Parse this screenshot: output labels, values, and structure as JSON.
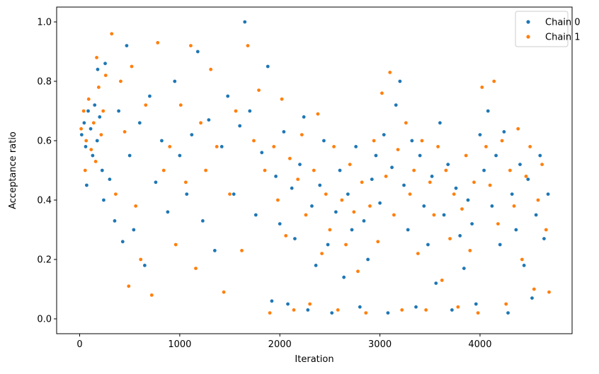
{
  "chart_data": {
    "type": "scatter",
    "title": "",
    "xlabel": "Iteration",
    "ylabel": "Acceptance ratio",
    "xlim": [
      -230,
      4920
    ],
    "ylim": [
      -0.05,
      1.05
    ],
    "xticks": [
      0,
      1000,
      2000,
      3000,
      4000
    ],
    "yticks": [
      0.0,
      0.2,
      0.4,
      0.6,
      0.8,
      1.0
    ],
    "xtick_labels": [
      "0",
      "1000",
      "2000",
      "3000",
      "4000"
    ],
    "ytick_labels": [
      "0.0",
      "0.2",
      "0.4",
      "0.6",
      "0.8",
      "1.0"
    ],
    "grid": false,
    "legend": {
      "position": "top-right",
      "entries": [
        {
          "label": "Chain 0",
          "color": "#1f77b4"
        },
        {
          "label": "Chain 1",
          "color": "#ff7f0e"
        }
      ]
    },
    "iterations": 4700,
    "series": [
      {
        "name": "Chain 0",
        "color": "#1f77b4",
        "points": [
          [
            20,
            0.62
          ],
          [
            45,
            0.66
          ],
          [
            60,
            0.58
          ],
          [
            85,
            0.7
          ],
          [
            110,
            0.64
          ],
          [
            130,
            0.55
          ],
          [
            150,
            0.72
          ],
          [
            175,
            0.6
          ],
          [
            200,
            0.68
          ],
          [
            225,
            0.5
          ],
          [
            70,
            0.45
          ],
          [
            180,
            0.84
          ],
          [
            240,
            0.4
          ],
          [
            255,
            0.86
          ],
          [
            300,
            0.47
          ],
          [
            350,
            0.33
          ],
          [
            390,
            0.7
          ],
          [
            430,
            0.26
          ],
          [
            470,
            0.92
          ],
          [
            500,
            0.55
          ],
          [
            540,
            0.3
          ],
          [
            600,
            0.66
          ],
          [
            650,
            0.18
          ],
          [
            700,
            0.75
          ],
          [
            760,
            0.46
          ],
          [
            820,
            0.6
          ],
          [
            880,
            0.36
          ],
          [
            950,
            0.8
          ],
          [
            1000,
            0.55
          ],
          [
            1070,
            0.42
          ],
          [
            1120,
            0.62
          ],
          [
            1180,
            0.9
          ],
          [
            1230,
            0.33
          ],
          [
            1290,
            0.67
          ],
          [
            1350,
            0.23
          ],
          [
            1420,
            0.58
          ],
          [
            1480,
            0.75
          ],
          [
            1540,
            0.42
          ],
          [
            1600,
            0.65
          ],
          [
            1650,
            1.0
          ],
          [
            1700,
            0.7
          ],
          [
            1760,
            0.35
          ],
          [
            1820,
            0.56
          ],
          [
            1880,
            0.85
          ],
          [
            1920,
            0.06
          ],
          [
            1960,
            0.48
          ],
          [
            2000,
            0.32
          ],
          [
            2040,
            0.63
          ],
          [
            2080,
            0.05
          ],
          [
            2120,
            0.44
          ],
          [
            2150,
            0.27
          ],
          [
            2200,
            0.52
          ],
          [
            2240,
            0.68
          ],
          [
            2280,
            0.03
          ],
          [
            2320,
            0.38
          ],
          [
            2360,
            0.18
          ],
          [
            2400,
            0.45
          ],
          [
            2440,
            0.6
          ],
          [
            2480,
            0.25
          ],
          [
            2520,
            0.02
          ],
          [
            2560,
            0.36
          ],
          [
            2600,
            0.5
          ],
          [
            2640,
            0.14
          ],
          [
            2680,
            0.42
          ],
          [
            2720,
            0.3
          ],
          [
            2760,
            0.58
          ],
          [
            2800,
            0.04
          ],
          [
            2840,
            0.33
          ],
          [
            2880,
            0.2
          ],
          [
            2920,
            0.47
          ],
          [
            2960,
            0.55
          ],
          [
            3000,
            0.39
          ],
          [
            3040,
            0.62
          ],
          [
            3080,
            0.02
          ],
          [
            3120,
            0.51
          ],
          [
            3160,
            0.72
          ],
          [
            3200,
            0.8
          ],
          [
            3240,
            0.45
          ],
          [
            3280,
            0.3
          ],
          [
            3320,
            0.6
          ],
          [
            3360,
            0.04
          ],
          [
            3400,
            0.55
          ],
          [
            3440,
            0.38
          ],
          [
            3480,
            0.25
          ],
          [
            3520,
            0.48
          ],
          [
            3560,
            0.12
          ],
          [
            3600,
            0.66
          ],
          [
            3640,
            0.35
          ],
          [
            3680,
            0.52
          ],
          [
            3720,
            0.03
          ],
          [
            3760,
            0.44
          ],
          [
            3800,
            0.28
          ],
          [
            3840,
            0.17
          ],
          [
            3880,
            0.4
          ],
          [
            3920,
            0.32
          ],
          [
            3960,
            0.05
          ],
          [
            4000,
            0.62
          ],
          [
            4040,
            0.5
          ],
          [
            4080,
            0.7
          ],
          [
            4120,
            0.38
          ],
          [
            4160,
            0.55
          ],
          [
            4200,
            0.25
          ],
          [
            4240,
            0.63
          ],
          [
            4280,
            0.02
          ],
          [
            4320,
            0.42
          ],
          [
            4360,
            0.3
          ],
          [
            4400,
            0.52
          ],
          [
            4440,
            0.18
          ],
          [
            4480,
            0.47
          ],
          [
            4520,
            0.07
          ],
          [
            4560,
            0.35
          ],
          [
            4600,
            0.55
          ],
          [
            4640,
            0.27
          ],
          [
            4680,
            0.42
          ]
        ]
      },
      {
        "name": "Chain 1",
        "color": "#ff7f0e",
        "points": [
          [
            15,
            0.64
          ],
          [
            40,
            0.7
          ],
          [
            65,
            0.6
          ],
          [
            90,
            0.74
          ],
          [
            115,
            0.57
          ],
          [
            140,
            0.66
          ],
          [
            160,
            0.53
          ],
          [
            190,
            0.78
          ],
          [
            215,
            0.62
          ],
          [
            235,
            0.7
          ],
          [
            55,
            0.5
          ],
          [
            170,
            0.88
          ],
          [
            260,
            0.82
          ],
          [
            320,
            0.96
          ],
          [
            360,
            0.42
          ],
          [
            410,
            0.8
          ],
          [
            450,
            0.63
          ],
          [
            490,
            0.11
          ],
          [
            520,
            0.85
          ],
          [
            560,
            0.38
          ],
          [
            610,
            0.2
          ],
          [
            660,
            0.72
          ],
          [
            720,
            0.08
          ],
          [
            780,
            0.93
          ],
          [
            840,
            0.5
          ],
          [
            900,
            0.58
          ],
          [
            960,
            0.25
          ],
          [
            1010,
            0.72
          ],
          [
            1060,
            0.46
          ],
          [
            1110,
            0.92
          ],
          [
            1160,
            0.17
          ],
          [
            1210,
            0.66
          ],
          [
            1260,
            0.5
          ],
          [
            1310,
            0.84
          ],
          [
            1370,
            0.58
          ],
          [
            1440,
            0.09
          ],
          [
            1500,
            0.42
          ],
          [
            1560,
            0.7
          ],
          [
            1620,
            0.23
          ],
          [
            1680,
            0.92
          ],
          [
            1740,
            0.6
          ],
          [
            1790,
            0.77
          ],
          [
            1850,
            0.5
          ],
          [
            1900,
            0.02
          ],
          [
            1940,
            0.58
          ],
          [
            1980,
            0.4
          ],
          [
            2020,
            0.74
          ],
          [
            2060,
            0.28
          ],
          [
            2100,
            0.54
          ],
          [
            2140,
            0.03
          ],
          [
            2180,
            0.47
          ],
          [
            2220,
            0.62
          ],
          [
            2260,
            0.35
          ],
          [
            2300,
            0.05
          ],
          [
            2340,
            0.5
          ],
          [
            2380,
            0.69
          ],
          [
            2420,
            0.22
          ],
          [
            2460,
            0.42
          ],
          [
            2500,
            0.3
          ],
          [
            2540,
            0.58
          ],
          [
            2580,
            0.03
          ],
          [
            2620,
            0.4
          ],
          [
            2660,
            0.25
          ],
          [
            2700,
            0.52
          ],
          [
            2740,
            0.36
          ],
          [
            2780,
            0.16
          ],
          [
            2820,
            0.46
          ],
          [
            2860,
            0.02
          ],
          [
            2900,
            0.38
          ],
          [
            2940,
            0.6
          ],
          [
            2980,
            0.26
          ],
          [
            3020,
            0.76
          ],
          [
            3060,
            0.48
          ],
          [
            3100,
            0.83
          ],
          [
            3140,
            0.35
          ],
          [
            3180,
            0.57
          ],
          [
            3220,
            0.03
          ],
          [
            3260,
            0.66
          ],
          [
            3300,
            0.42
          ],
          [
            3340,
            0.5
          ],
          [
            3380,
            0.22
          ],
          [
            3420,
            0.6
          ],
          [
            3460,
            0.03
          ],
          [
            3500,
            0.46
          ],
          [
            3540,
            0.35
          ],
          [
            3580,
            0.58
          ],
          [
            3620,
            0.13
          ],
          [
            3660,
            0.5
          ],
          [
            3700,
            0.27
          ],
          [
            3740,
            0.42
          ],
          [
            3780,
            0.04
          ],
          [
            3820,
            0.37
          ],
          [
            3860,
            0.55
          ],
          [
            3900,
            0.23
          ],
          [
            3940,
            0.46
          ],
          [
            3980,
            0.02
          ],
          [
            4020,
            0.78
          ],
          [
            4060,
            0.58
          ],
          [
            4100,
            0.45
          ],
          [
            4140,
            0.8
          ],
          [
            4180,
            0.32
          ],
          [
            4220,
            0.6
          ],
          [
            4260,
            0.05
          ],
          [
            4300,
            0.5
          ],
          [
            4340,
            0.38
          ],
          [
            4380,
            0.64
          ],
          [
            4420,
            0.2
          ],
          [
            4460,
            0.48
          ],
          [
            4500,
            0.58
          ],
          [
            4540,
            0.1
          ],
          [
            4580,
            0.4
          ],
          [
            4620,
            0.52
          ],
          [
            4660,
            0.3
          ],
          [
            4690,
            0.09
          ]
        ]
      }
    ]
  }
}
